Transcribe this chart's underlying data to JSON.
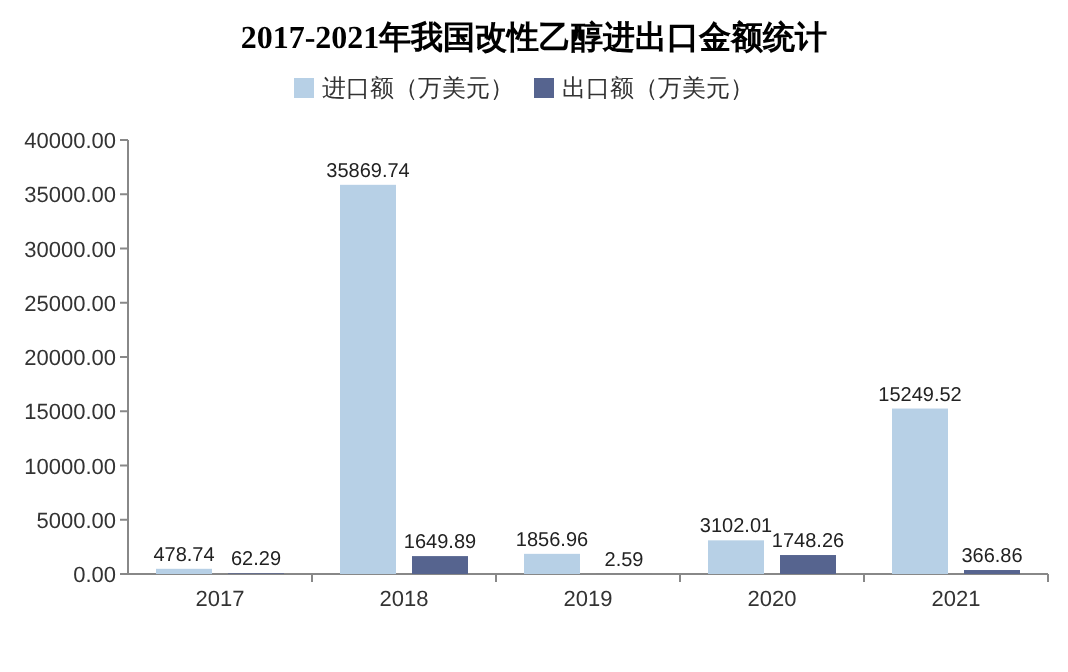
{
  "chart_data": {
    "type": "bar",
    "title": "2017-2021年我国改性乙醇进出口金额统计",
    "categories": [
      "2017",
      "2018",
      "2019",
      "2020",
      "2021"
    ],
    "series": [
      {
        "name": "进口额（万美元）",
        "color": "#b7d0e6",
        "values": [
          478.74,
          35869.74,
          1856.96,
          3102.01,
          15249.52
        ]
      },
      {
        "name": "出口额（万美元）",
        "color": "#56648f",
        "values": [
          62.29,
          1649.89,
          2.59,
          1748.26,
          366.86
        ]
      }
    ],
    "ylim": [
      0,
      40000
    ],
    "yticks": [
      {
        "value": 0,
        "label": "0.00"
      },
      {
        "value": 5000,
        "label": "5000.00"
      },
      {
        "value": 10000,
        "label": "10000.00"
      },
      {
        "value": 15000,
        "label": "15000.00"
      },
      {
        "value": 20000,
        "label": "20000.00"
      },
      {
        "value": 25000,
        "label": "25000.00"
      },
      {
        "value": 30000,
        "label": "30000.00"
      },
      {
        "value": 35000,
        "label": "35000.00"
      },
      {
        "value": 40000,
        "label": "40000.00"
      }
    ],
    "data_labels": true,
    "legend": "top",
    "grid": false
  }
}
